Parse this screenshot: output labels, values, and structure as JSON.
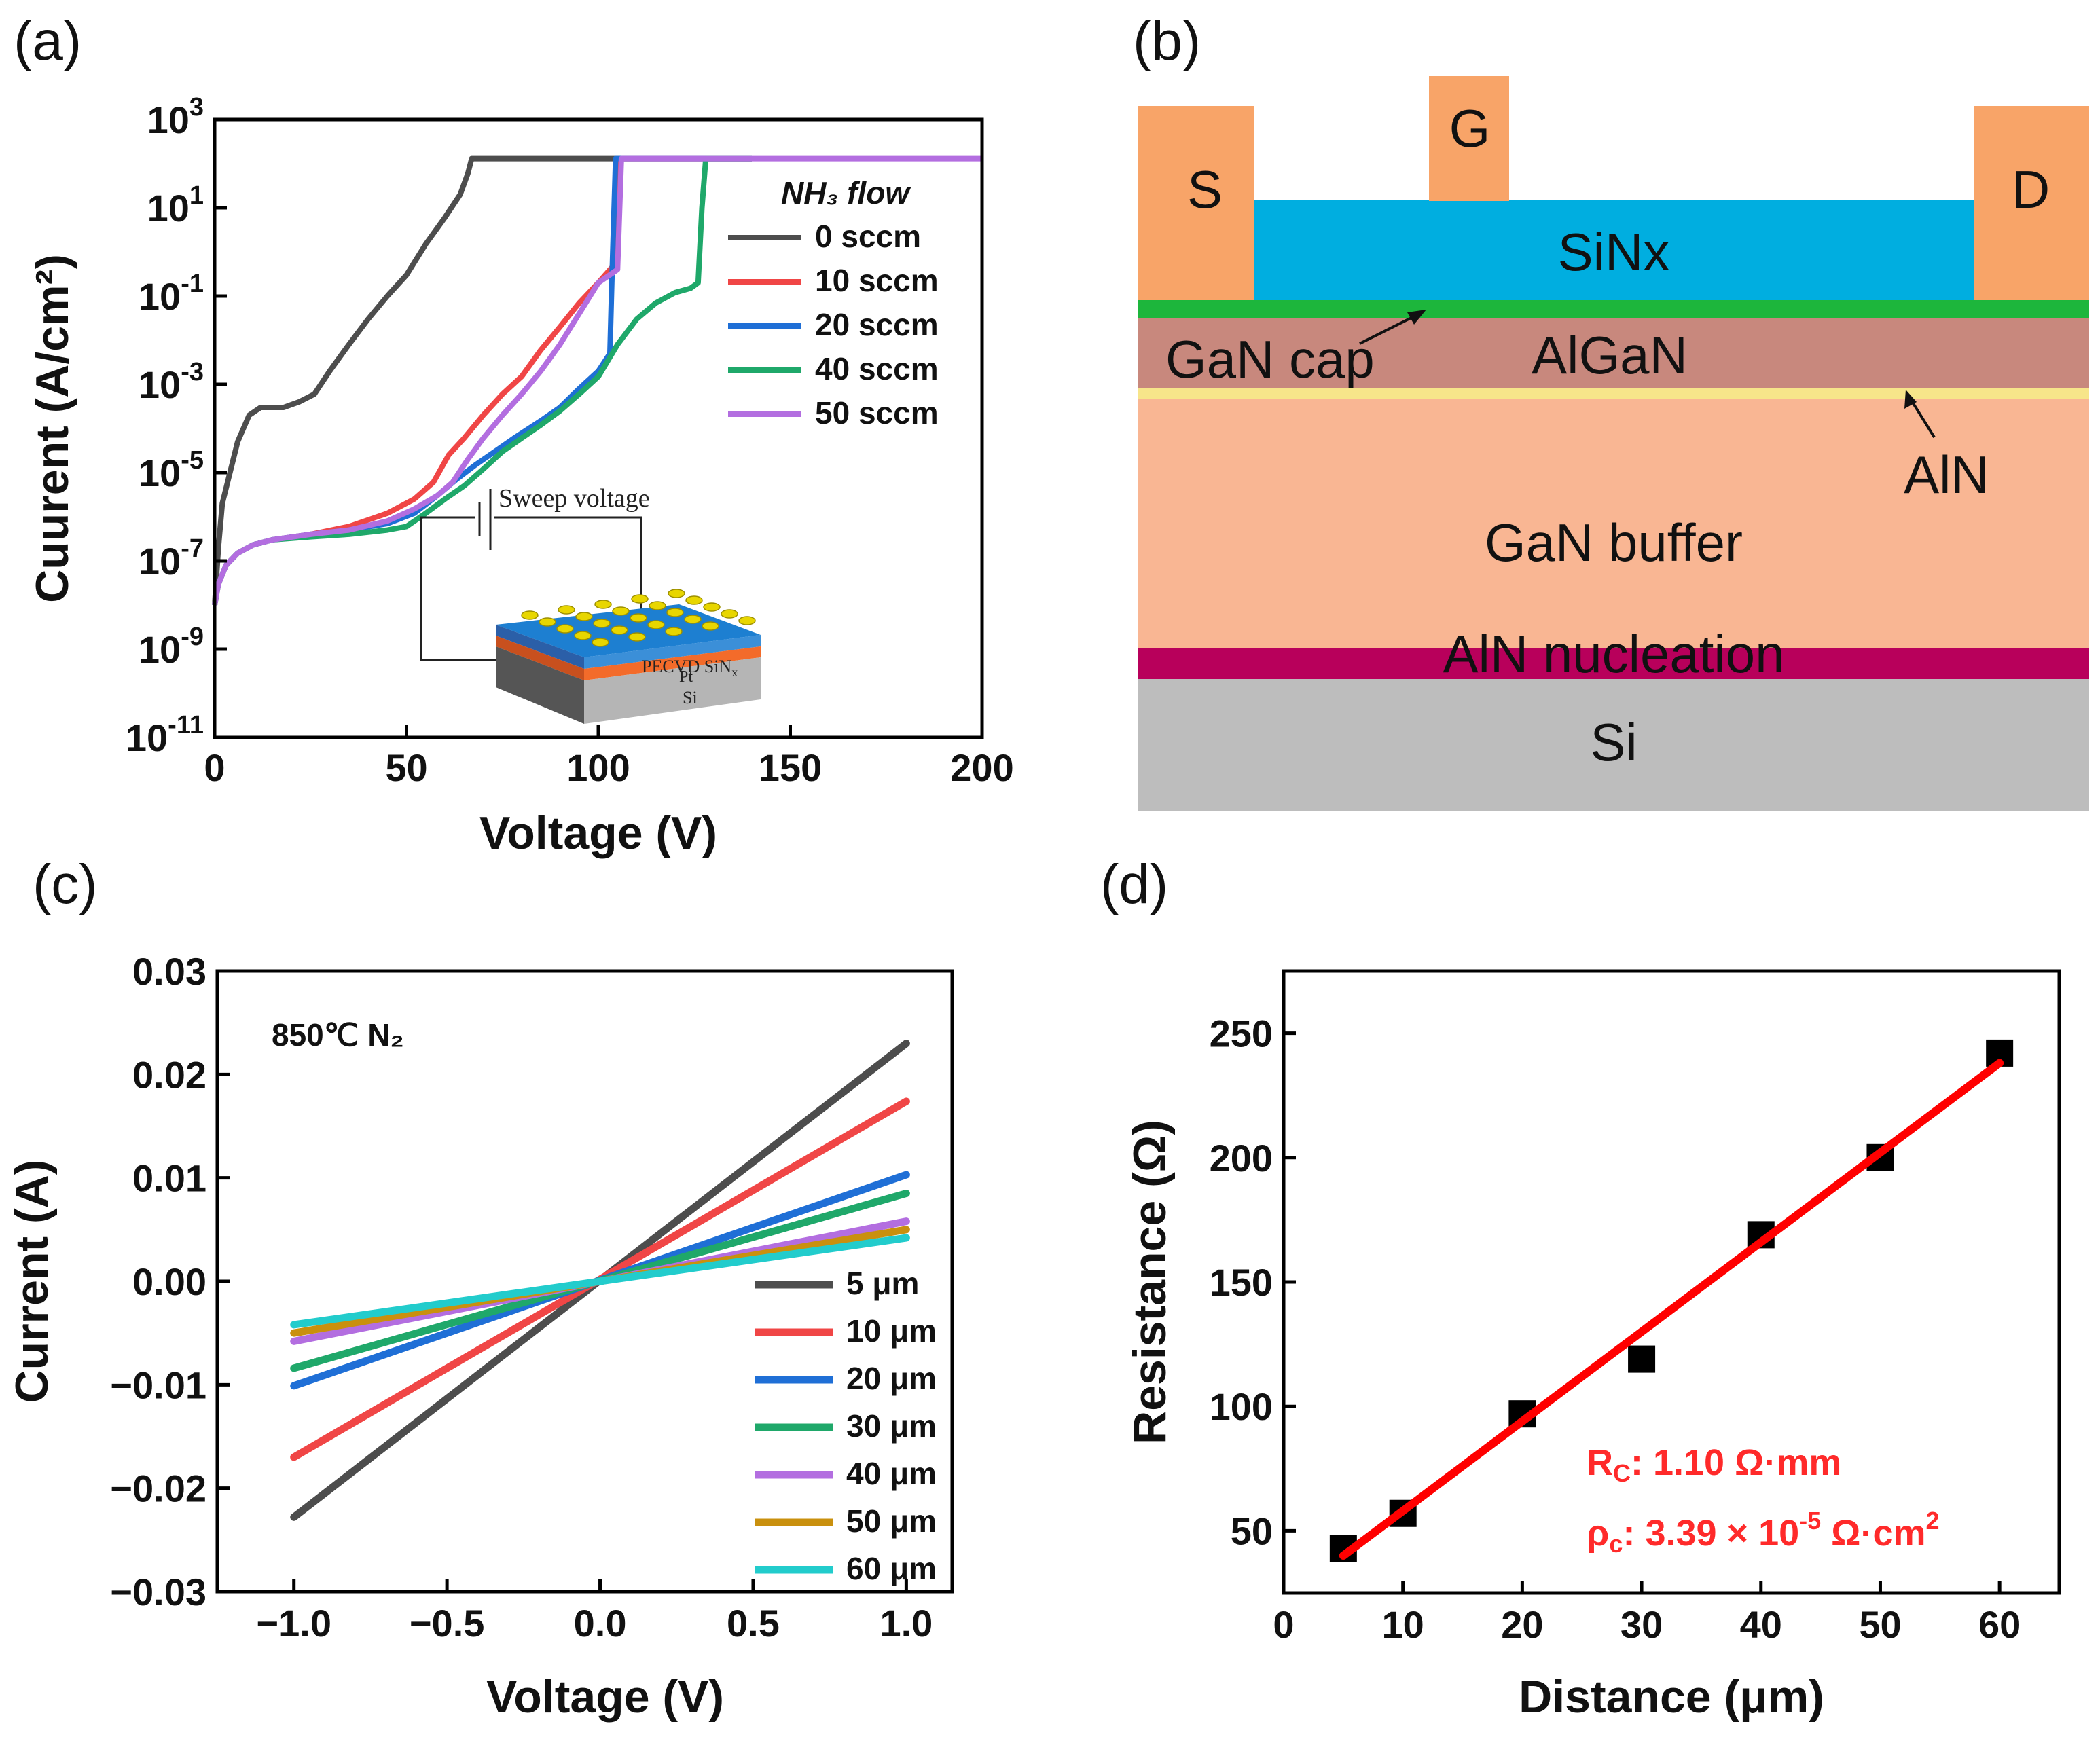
{
  "panel_labels": {
    "a": "(a)",
    "b": "(b)",
    "c": "(c)",
    "d": "(d)"
  },
  "chart_data": [
    {
      "panel": "a",
      "type": "line",
      "xlabel": "Voltage (V)",
      "ylabel": "Cuurent (A/cm²)",
      "xlim": [
        0,
        200
      ],
      "ylim_log10": [
        -11,
        3
      ],
      "yscale": "log",
      "x_ticks": [
        "0",
        "50",
        "100",
        "150",
        "200"
      ],
      "y_tick_exponents": [
        "3",
        "1",
        "-1",
        "-3",
        "-5",
        "-7",
        "-9",
        "-11"
      ],
      "y_tick_base": "10",
      "legend_title": "NH₃ flow",
      "legend_placement": "top-right",
      "colors": {
        "axis": "#000000"
      },
      "series": [
        {
          "name": "0 sccm",
          "color": "#4d4d4d",
          "points": [
            [
              0,
              1e-08
            ],
            [
              1,
              2e-07
            ],
            [
              2,
              2e-06
            ],
            [
              4,
              1e-05
            ],
            [
              6,
              5e-05
            ],
            [
              9,
              0.0002
            ],
            [
              12,
              0.0003
            ],
            [
              15,
              0.0003
            ],
            [
              18,
              0.0003
            ],
            [
              22,
              0.0004
            ],
            [
              26,
              0.0006
            ],
            [
              30,
              0.002
            ],
            [
              35,
              0.008
            ],
            [
              40,
              0.03
            ],
            [
              45,
              0.1
            ],
            [
              50,
              0.3
            ],
            [
              55,
              1.5
            ],
            [
              60,
              6
            ],
            [
              64,
              20
            ],
            [
              66,
              60
            ],
            [
              67,
              130
            ],
            [
              70,
              130
            ],
            [
              100,
              130
            ],
            [
              140,
              130
            ]
          ]
        },
        {
          "name": "10 sccm",
          "color": "#f04646",
          "points": [
            [
              0,
              1e-08
            ],
            [
              1,
              3e-08
            ],
            [
              3,
              8e-08
            ],
            [
              6,
              1.5e-07
            ],
            [
              10,
              2.3e-07
            ],
            [
              15,
              3e-07
            ],
            [
              25,
              4e-07
            ],
            [
              35,
              6e-07
            ],
            [
              45,
              1.2e-06
            ],
            [
              52,
              2.5e-06
            ],
            [
              57,
              6e-06
            ],
            [
              61,
              2.5e-05
            ],
            [
              65,
              6e-05
            ],
            [
              70,
              0.0002
            ],
            [
              75,
              0.0006
            ],
            [
              80,
              0.0015
            ],
            [
              85,
              0.006
            ],
            [
              90,
              0.02
            ],
            [
              95,
              0.07
            ],
            [
              100,
              0.2
            ],
            [
              104,
              0.5
            ],
            [
              105,
              50
            ],
            [
              106,
              130
            ],
            [
              140,
              130
            ]
          ]
        },
        {
          "name": "20 sccm",
          "color": "#1f6fd6",
          "points": [
            [
              0,
              1e-08
            ],
            [
              1,
              3e-08
            ],
            [
              3,
              8e-08
            ],
            [
              6,
              1.5e-07
            ],
            [
              10,
              2.3e-07
            ],
            [
              15,
              3e-07
            ],
            [
              25,
              4e-07
            ],
            [
              35,
              5e-07
            ],
            [
              45,
              7e-07
            ],
            [
              52,
              1.2e-06
            ],
            [
              58,
              3e-06
            ],
            [
              63,
              7e-06
            ],
            [
              68,
              1.5e-05
            ],
            [
              73,
              3e-05
            ],
            [
              78,
              6e-05
            ],
            [
              85,
              0.00015
            ],
            [
              90,
              0.0003
            ],
            [
              95,
              0.0008
            ],
            [
              100,
              0.002
            ],
            [
              103,
              0.005
            ],
            [
              103.5,
              0.2
            ],
            [
              104,
              5
            ],
            [
              104.5,
              130
            ],
            [
              140,
              130
            ]
          ]
        },
        {
          "name": "40 sccm",
          "color": "#1fa86a",
          "points": [
            [
              0,
              1e-08
            ],
            [
              1,
              3e-08
            ],
            [
              3,
              8e-08
            ],
            [
              6,
              1.5e-07
            ],
            [
              10,
              2.3e-07
            ],
            [
              15,
              3e-07
            ],
            [
              25,
              3.5e-07
            ],
            [
              35,
              4e-07
            ],
            [
              45,
              5e-07
            ],
            [
              50,
              6e-07
            ],
            [
              55,
              1.2e-06
            ],
            [
              60,
              2.5e-06
            ],
            [
              65,
              5e-06
            ],
            [
              70,
              1.2e-05
            ],
            [
              75,
              3e-05
            ],
            [
              80,
              6e-05
            ],
            [
              85,
              0.00012
            ],
            [
              90,
              0.00025
            ],
            [
              95,
              0.0006
            ],
            [
              100,
              0.0015
            ],
            [
              105,
              0.008
            ],
            [
              110,
              0.03
            ],
            [
              115,
              0.07
            ],
            [
              120,
              0.12
            ],
            [
              124,
              0.15
            ],
            [
              126,
              0.2
            ],
            [
              127,
              10
            ],
            [
              128,
              130
            ],
            [
              140,
              130
            ]
          ]
        },
        {
          "name": "50 sccm",
          "color": "#b36ee0",
          "points": [
            [
              0,
              1e-08
            ],
            [
              1,
              3e-08
            ],
            [
              3,
              8e-08
            ],
            [
              6,
              1.5e-07
            ],
            [
              10,
              2.3e-07
            ],
            [
              15,
              3e-07
            ],
            [
              25,
              4e-07
            ],
            [
              35,
              5e-07
            ],
            [
              45,
              8e-07
            ],
            [
              52,
              1.5e-06
            ],
            [
              58,
              3e-06
            ],
            [
              62,
              6e-06
            ],
            [
              66,
              2e-05
            ],
            [
              70,
              6e-05
            ],
            [
              75,
              0.0002
            ],
            [
              80,
              0.0006
            ],
            [
              85,
              0.002
            ],
            [
              90,
              0.008
            ],
            [
              95,
              0.04
            ],
            [
              100,
              0.2
            ],
            [
              105,
              0.4
            ],
            [
              106,
              130
            ],
            [
              200,
              130
            ]
          ]
        }
      ]
    },
    {
      "panel": "c",
      "type": "line",
      "xlabel": "Voltage (V)",
      "ylabel": "Current (A)",
      "xlim": [
        -1.25,
        1.15
      ],
      "ylim": [
        -0.03,
        0.03
      ],
      "x_ticks": [
        "−1.0",
        "−0.5",
        "0.0",
        "0.5",
        "1.0"
      ],
      "y_ticks": [
        "0.03",
        "0.02",
        "0.01",
        "0.00",
        "−0.01",
        "−0.02",
        "−0.03"
      ],
      "annotation": "850℃ N₂",
      "legend_placement": "bottom-right",
      "series": [
        {
          "name": "5 μm",
          "color": "#4d4d4d",
          "x": [
            -1.0,
            1.0
          ],
          "y": [
            -0.0228,
            0.023
          ]
        },
        {
          "name": "10 μm",
          "color": "#f04646",
          "x": [
            -1.0,
            1.0
          ],
          "y": [
            -0.017,
            0.0174
          ]
        },
        {
          "name": "20 μm",
          "color": "#1f6fd6",
          "x": [
            -1.0,
            1.0
          ],
          "y": [
            -0.0101,
            0.0103
          ]
        },
        {
          "name": "30 μm",
          "color": "#1fa86a",
          "x": [
            -1.0,
            1.0
          ],
          "y": [
            -0.0084,
            0.0085
          ]
        },
        {
          "name": "40 μm",
          "color": "#b36ee0",
          "x": [
            -1.0,
            1.0
          ],
          "y": [
            -0.0058,
            0.0058
          ]
        },
        {
          "name": "50 μm",
          "color": "#c9900e",
          "x": [
            -1.0,
            1.0
          ],
          "y": [
            -0.005,
            0.005
          ]
        },
        {
          "name": "60 μm",
          "color": "#22cccc",
          "x": [
            -1.0,
            1.0
          ],
          "y": [
            -0.0042,
            0.0042
          ]
        }
      ]
    },
    {
      "panel": "d",
      "type": "scatter",
      "xlabel": "Distance (μm)",
      "ylabel": "Resistance (Ω)",
      "xlim": [
        0,
        65
      ],
      "ylim": [
        25,
        275
      ],
      "x_ticks": [
        "0",
        "10",
        "20",
        "30",
        "40",
        "50",
        "60"
      ],
      "y_ticks": [
        "250",
        "200",
        "150",
        "100",
        "50"
      ],
      "points": {
        "x": [
          5,
          10,
          20,
          30,
          40,
          50,
          60
        ],
        "y": [
          43,
          57,
          97,
          119,
          169,
          200,
          242
        ]
      },
      "marker_color": "#000000",
      "fit": {
        "color": "#ff0000",
        "x": [
          5,
          60
        ],
        "y": [
          40,
          238
        ]
      },
      "annotations": {
        "rc_prefix": "R",
        "rc_sub": "C",
        "rc_value": ": 1.10 Ω·mm",
        "rhoc_prefix": "ρ",
        "rhoc_sub": "c",
        "rhoc_value": ": 3.39 × 10",
        "rhoc_exp": "-5",
        "rhoc_unit": " Ω·cm",
        "rhoc_unit_exp": "2",
        "color": "#ff2a2a"
      }
    }
  ],
  "diagram_b": {
    "contacts": {
      "source": "S",
      "gate": "G",
      "drain": "D"
    },
    "layers": {
      "sinx": "SiNx",
      "gan_cap": "GaN cap",
      "algan": "AlGaN",
      "aln": "AlN",
      "gan_buffer": "GaN buffer",
      "aln_nucleation": "AlN nucleation",
      "si": "Si"
    },
    "colors": {
      "contact": "#f8a468",
      "sinx": "#00aee0",
      "gan_cap": "#1db63c",
      "algan": "#c8887d",
      "aln": "#f7e58a",
      "gan_buffer": "#f9b693",
      "aln_nucleation": "#b8005b",
      "si": "#bdbdbd"
    }
  },
  "inset_a": {
    "sweep_label": "Sweep voltage",
    "layer_labels": {
      "sinx": "PECVD SiN",
      "sinx_sub": "x",
      "pt": "Pt",
      "si": "Si"
    }
  }
}
